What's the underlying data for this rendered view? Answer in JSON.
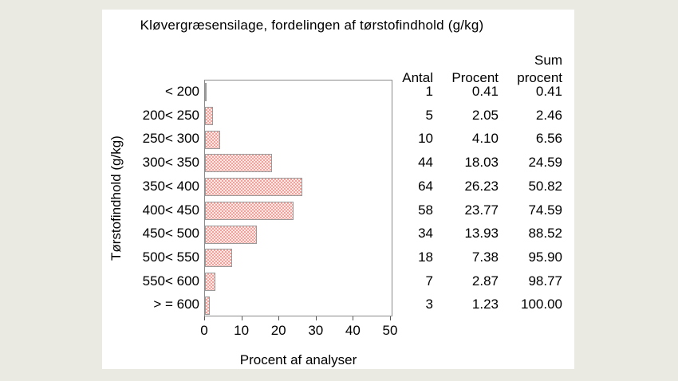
{
  "page": {
    "background_color": "#EAEAE2",
    "panel_color": "#FFFFFF",
    "bar_pattern_colors": [
      "#F2A29C",
      "#FCE9E6"
    ],
    "bar_border_color": "#9A9A9A",
    "frame_color": "#8A8A8A"
  },
  "chart": {
    "title": "Kløvergræsensilage, fordelingen af tørstofindhold (g/kg)",
    "ylabel": "Tørstofindhold (g/kg)",
    "xlabel": "Procent af analyser",
    "x_ticks": [
      0,
      10,
      20,
      30,
      40,
      50
    ]
  },
  "table": {
    "antal_header": "Antal",
    "procent_header": "Procent",
    "sum_header_line1": "Sum",
    "sum_header_line2": "procent"
  },
  "rows": [
    {
      "label": "< 200",
      "antal": "1",
      "procent": "0.41",
      "sum_procent": "0.41"
    },
    {
      "label": "200< 250",
      "antal": "5",
      "procent": "2.05",
      "sum_procent": "2.46"
    },
    {
      "label": "250< 300",
      "antal": "10",
      "procent": "4.10",
      "sum_procent": "6.56"
    },
    {
      "label": "300< 350",
      "antal": "44",
      "procent": "18.03",
      "sum_procent": "24.59"
    },
    {
      "label": "350< 400",
      "antal": "64",
      "procent": "26.23",
      "sum_procent": "50.82"
    },
    {
      "label": "400< 450",
      "antal": "58",
      "procent": "23.77",
      "sum_procent": "74.59"
    },
    {
      "label": "450< 500",
      "antal": "34",
      "procent": "13.93",
      "sum_procent": "88.52"
    },
    {
      "label": "500< 550",
      "antal": "18",
      "procent": "7.38",
      "sum_procent": "95.90"
    },
    {
      "label": "550< 600",
      "antal": "7",
      "procent": "2.87",
      "sum_procent": "98.77"
    },
    {
      "label": "> = 600",
      "antal": "3",
      "procent": "1.23",
      "sum_procent": "100.00"
    }
  ],
  "chart_data": {
    "type": "bar",
    "orientation": "horizontal",
    "title": "Kløvergræsensilage, fordelingen af tørstofindhold (g/kg)",
    "xlabel": "Procent af analyser",
    "ylabel": "Tørstofindhold (g/kg)",
    "categories": [
      "< 200",
      "200< 250",
      "250< 300",
      "300< 350",
      "350< 400",
      "400< 450",
      "450< 500",
      "500< 550",
      "550< 600",
      "> = 600"
    ],
    "series": [
      {
        "name": "Antal",
        "values": [
          1,
          5,
          10,
          44,
          64,
          58,
          34,
          18,
          7,
          3
        ]
      },
      {
        "name": "Procent",
        "values": [
          0.41,
          2.05,
          4.1,
          18.03,
          26.23,
          23.77,
          13.93,
          7.38,
          2.87,
          1.23
        ]
      },
      {
        "name": "Sum procent",
        "values": [
          0.41,
          2.46,
          6.56,
          24.59,
          50.82,
          74.59,
          88.52,
          95.9,
          98.77,
          100.0
        ]
      }
    ],
    "plotted_series": "Procent",
    "xlim": [
      0,
      50
    ],
    "x_ticks": [
      0,
      10,
      20,
      30,
      40,
      50
    ],
    "grid": false,
    "legend": "none",
    "bar_style": "red-checker-pattern"
  }
}
